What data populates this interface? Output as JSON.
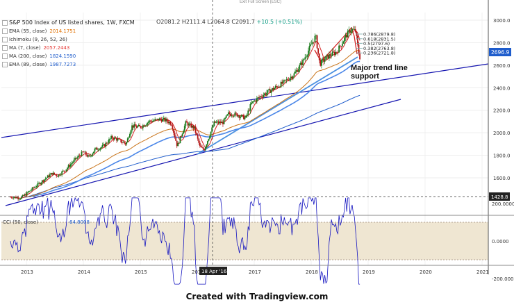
{
  "header": {
    "title": "S&P 500 Index of US listed shares, 1W, FXCM",
    "ohlc": {
      "o": "O2081.2",
      "h": "H2111.4",
      "l": "L2064.8",
      "c": "C2091.7",
      "change": "+10.5 (+0.51%)"
    },
    "exit_fullscreen": "Exit Full Screen (ESC)"
  },
  "indicators": [
    {
      "label": "EMA (55, close)",
      "value": "2014.1751",
      "color": "#e07000"
    },
    {
      "label": "Ichimoku (9, 26, 52, 26)",
      "value": "",
      "color": "#2962ff"
    },
    {
      "label": "MA (7, close)",
      "value": "2057.2443",
      "color": "#e53935"
    },
    {
      "label": "MA (200, close)",
      "value": "1824.1590",
      "color": "#1e5ccc"
    },
    {
      "label": "EMA (89, close)",
      "value": "1987.7273",
      "color": "#1e5ccc"
    }
  ],
  "fib_levels": [
    {
      "label": "0.786(2879.8)",
      "value": 2879.8
    },
    {
      "label": "0.618(2831.5)",
      "value": 2831.5
    },
    {
      "label": "0.5(2797.6)",
      "value": 2797.6
    },
    {
      "label": "0.382(2763.8)",
      "value": 2763.8
    },
    {
      "label": "0.236(2721.8)",
      "value": 2721.8
    }
  ],
  "annotation": "Major trend line\nsupport",
  "footer": "Created with Tradingview.com",
  "crosshair_label": "18 Apr '16",
  "chart_data": {
    "type": "candlestick",
    "price_axis": {
      "ticks": [
        1600,
        1800,
        2000,
        2200,
        2400,
        2600,
        2800,
        3000
      ],
      "range": [
        1380,
        3050
      ]
    },
    "current_price": "2696.9",
    "crosshair_price": "1428.8",
    "time_axis": {
      "ticks": [
        "2013",
        "2014",
        "2015",
        "2016",
        "2017",
        "2018",
        "2019",
        "2020",
        "2021"
      ]
    },
    "cci": {
      "label": "CCI (50, close)",
      "value": "64.8008",
      "ticks": [
        "200.0000",
        "0.0000",
        "-200.0000"
      ],
      "band": [
        -100,
        100
      ],
      "range": [
        -240,
        240
      ]
    },
    "series_points": [
      [
        2012.75,
        1430
      ],
      [
        2012.9,
        1420
      ],
      [
        2013.0,
        1460
      ],
      [
        2013.15,
        1520
      ],
      [
        2013.3,
        1580
      ],
      [
        2013.45,
        1640
      ],
      [
        2013.55,
        1620
      ],
      [
        2013.7,
        1680
      ],
      [
        2013.85,
        1760
      ],
      [
        2014.0,
        1830
      ],
      [
        2014.1,
        1780
      ],
      [
        2014.2,
        1850
      ],
      [
        2014.35,
        1880
      ],
      [
        2014.5,
        1960
      ],
      [
        2014.6,
        1940
      ],
      [
        2014.75,
        1900
      ],
      [
        2014.85,
        2060
      ],
      [
        2015.0,
        2050
      ],
      [
        2015.15,
        2100
      ],
      [
        2015.35,
        2120
      ],
      [
        2015.45,
        2110
      ],
      [
        2015.55,
        2080
      ],
      [
        2015.65,
        1880
      ],
      [
        2015.8,
        2090
      ],
      [
        2015.95,
        2040
      ],
      [
        2016.05,
        1870
      ],
      [
        2016.12,
        1850
      ],
      [
        2016.3,
        2090
      ],
      [
        2016.45,
        2090
      ],
      [
        2016.55,
        2170
      ],
      [
        2016.7,
        2160
      ],
      [
        2016.85,
        2130
      ],
      [
        2016.95,
        2260
      ],
      [
        2017.1,
        2320
      ],
      [
        2017.3,
        2380
      ],
      [
        2017.5,
        2440
      ],
      [
        2017.7,
        2520
      ],
      [
        2017.85,
        2630
      ],
      [
        2018.0,
        2780
      ],
      [
        2018.08,
        2860
      ],
      [
        2018.15,
        2610
      ],
      [
        2018.3,
        2680
      ],
      [
        2018.45,
        2720
      ],
      [
        2018.6,
        2850
      ],
      [
        2018.7,
        2920
      ],
      [
        2018.78,
        2900
      ],
      [
        2018.83,
        2720
      ],
      [
        2018.86,
        2660
      ]
    ]
  }
}
